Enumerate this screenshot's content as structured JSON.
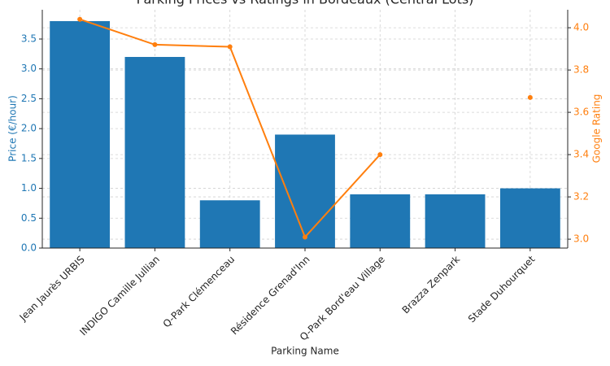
{
  "chart_data": {
    "type": "bar-line",
    "title": "Parking Prices vs Ratings in Bordeaux (Central Lots)",
    "x_label": "Parking Name",
    "y_label": "Price (€/hour)",
    "y2_label": "Google Rating",
    "categories": [
      "Jean Jaurès URBIS",
      "INDIGO Camille Jullian",
      "Q-Park Clémenceau",
      "Résidence Grenad'Inn",
      "Q-Park Bord'eau Village",
      "Brazza Zenpark",
      "Stade Duhourquet"
    ],
    "series": [
      {
        "values": [
          3.8,
          3.2,
          0.8,
          1.9,
          0.9,
          0.9,
          1.0
        ],
        "color": "#1f77b4"
      },
      {
        "values": [
          4.04,
          3.92,
          3.91,
          3.01,
          3.4,
          null,
          3.67
        ],
        "color": "#ff7f0e",
        "axis": "y2"
      }
    ],
    "ylim": [
      0,
      3.99
    ],
    "yticks": [
      {
        "value": 0,
        "label": "0.0"
      },
      0.5,
      {
        "value": 1,
        "label": "1.0"
      },
      1.5,
      {
        "value": 2,
        "label": "2.0"
      },
      2.5,
      {
        "value": 3,
        "label": "3.0"
      },
      3.5
    ],
    "y2lim": [
      2.958,
      4.085
    ],
    "y2ticks": [
      {
        "value": 3,
        "label": "3.0"
      },
      3.2,
      3.4,
      3.6,
      3.8,
      {
        "value": 4,
        "label": "4.0"
      }
    ],
    "grid": true
  }
}
